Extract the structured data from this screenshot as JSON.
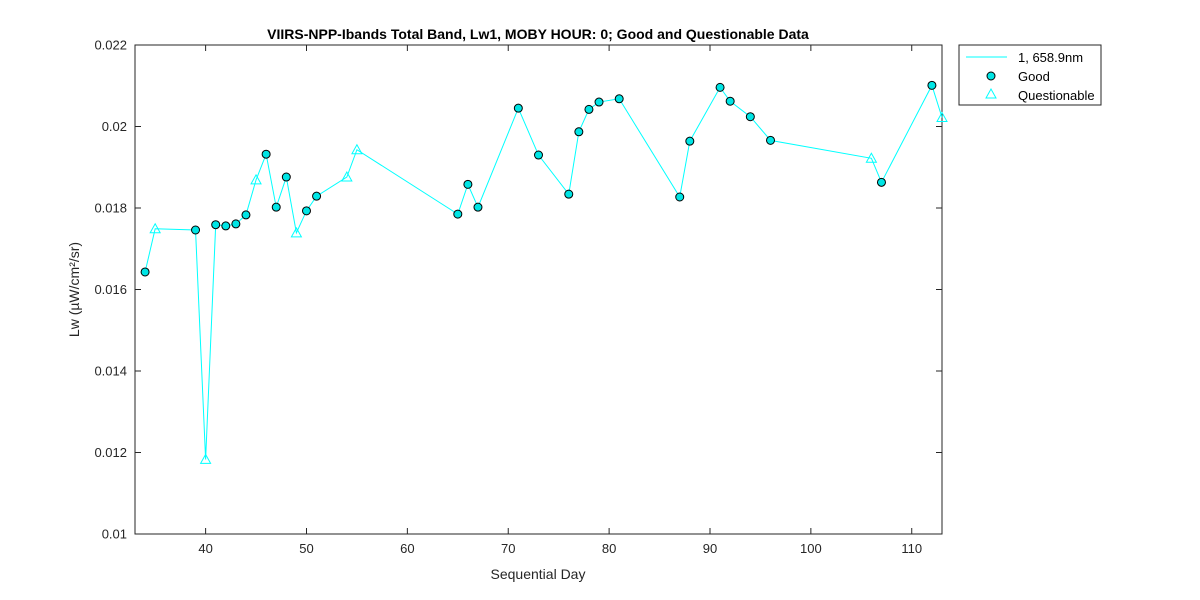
{
  "chart_data": {
    "type": "line",
    "title": "VIIRS-NPP-Ibands Total Band,  Lw1, MOBY HOUR: 0;  Good and Questionable Data",
    "xlabel": "Sequential Day",
    "ylabel": "Lw (µW/cm²/sr)",
    "xlim": [
      33,
      113
    ],
    "ylim": [
      0.01,
      0.022
    ],
    "xticks": [
      40,
      50,
      60,
      70,
      80,
      90,
      100,
      110
    ],
    "xtick_labels": [
      "40",
      "50",
      "60",
      "70",
      "80",
      "90",
      "100",
      "110"
    ],
    "yticks": [
      0.01,
      0.012,
      0.014,
      0.016,
      0.018,
      0.02,
      0.022
    ],
    "ytick_labels": [
      "0.01",
      "0.012",
      "0.014",
      "0.016",
      "0.018",
      "0.02",
      "0.022"
    ],
    "grid": false,
    "legend_position": "outside-top-right",
    "colors": {
      "series": "#00ffff",
      "marker_fill": "#00e5e5",
      "marker_edge": "#000000",
      "axis": "#262626"
    },
    "series": [
      {
        "name": "1, 658.9nm",
        "points": [
          {
            "x": 34,
            "y": 0.01643,
            "q": "Good"
          },
          {
            "x": 35,
            "y": 0.01749,
            "q": "Questionable"
          },
          {
            "x": 39,
            "y": 0.01746,
            "q": "Good"
          },
          {
            "x": 40,
            "y": 0.01183,
            "q": "Questionable"
          },
          {
            "x": 41,
            "y": 0.01759,
            "q": "Good"
          },
          {
            "x": 42,
            "y": 0.01756,
            "q": "Good"
          },
          {
            "x": 43,
            "y": 0.01761,
            "q": "Good"
          },
          {
            "x": 44,
            "y": 0.01783,
            "q": "Good"
          },
          {
            "x": 45,
            "y": 0.01869,
            "q": "Questionable"
          },
          {
            "x": 46,
            "y": 0.01932,
            "q": "Good"
          },
          {
            "x": 47,
            "y": 0.01802,
            "q": "Good"
          },
          {
            "x": 48,
            "y": 0.01876,
            "q": "Good"
          },
          {
            "x": 49,
            "y": 0.01739,
            "q": "Questionable"
          },
          {
            "x": 50,
            "y": 0.01793,
            "q": "Good"
          },
          {
            "x": 51,
            "y": 0.01829,
            "q": "Good"
          },
          {
            "x": 54,
            "y": 0.01876,
            "q": "Questionable"
          },
          {
            "x": 55,
            "y": 0.01943,
            "q": "Questionable"
          },
          {
            "x": 65,
            "y": 0.01785,
            "q": "Good"
          },
          {
            "x": 66,
            "y": 0.01858,
            "q": "Good"
          },
          {
            "x": 67,
            "y": 0.01802,
            "q": "Good"
          },
          {
            "x": 71,
            "y": 0.02045,
            "q": "Good"
          },
          {
            "x": 73,
            "y": 0.0193,
            "q": "Good"
          },
          {
            "x": 76,
            "y": 0.01834,
            "q": "Good"
          },
          {
            "x": 77,
            "y": 0.01987,
            "q": "Good"
          },
          {
            "x": 78,
            "y": 0.02042,
            "q": "Good"
          },
          {
            "x": 79,
            "y": 0.0206,
            "q": "Good"
          },
          {
            "x": 81,
            "y": 0.02068,
            "q": "Good"
          },
          {
            "x": 87,
            "y": 0.01827,
            "q": "Good"
          },
          {
            "x": 88,
            "y": 0.01964,
            "q": "Good"
          },
          {
            "x": 91,
            "y": 0.02096,
            "q": "Good"
          },
          {
            "x": 92,
            "y": 0.02062,
            "q": "Good"
          },
          {
            "x": 94,
            "y": 0.02024,
            "q": "Good"
          },
          {
            "x": 96,
            "y": 0.01966,
            "q": "Good"
          },
          {
            "x": 106,
            "y": 0.01922,
            "q": "Questionable"
          },
          {
            "x": 107,
            "y": 0.01863,
            "q": "Good"
          },
          {
            "x": 112,
            "y": 0.02101,
            "q": "Good"
          },
          {
            "x": 113,
            "y": 0.02022,
            "q": "Questionable"
          }
        ]
      }
    ],
    "legend": [
      {
        "label": "1, 658.9nm",
        "symbol": "line"
      },
      {
        "label": "Good",
        "symbol": "circle"
      },
      {
        "label": "Questionable",
        "symbol": "triangle"
      }
    ]
  }
}
